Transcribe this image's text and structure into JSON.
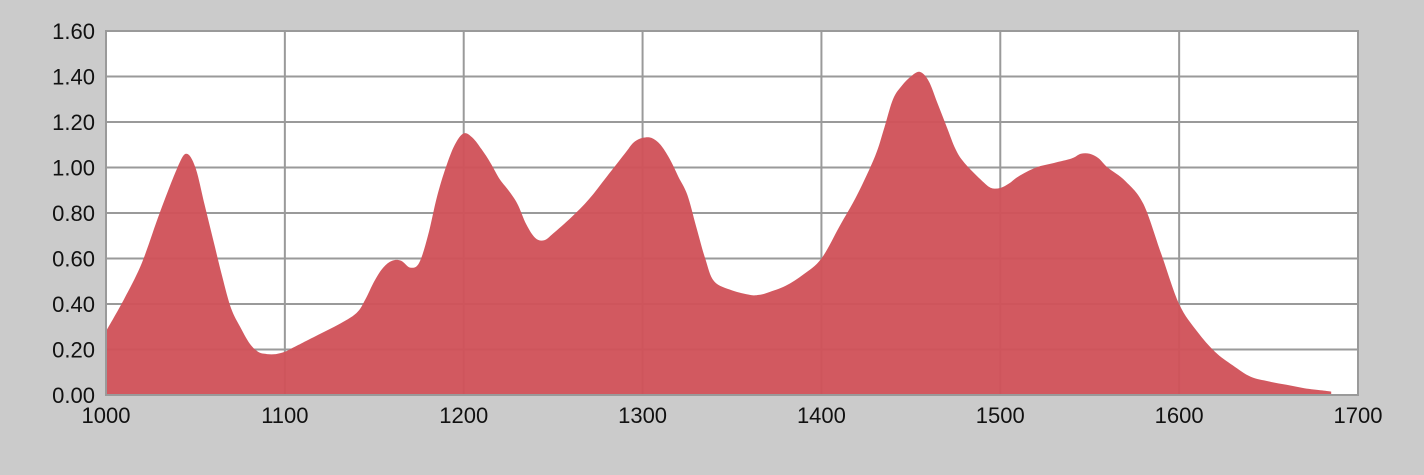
{
  "chart_data": {
    "type": "area",
    "title": "",
    "xlabel": "",
    "ylabel": "",
    "xlim": [
      1000,
      1700
    ],
    "ylim": [
      0,
      1.6
    ],
    "x_ticks": [
      "1000",
      "1100",
      "1200",
      "1300",
      "1400",
      "1500",
      "1600",
      "1700"
    ],
    "y_ticks": [
      "0.00",
      "0.20",
      "0.40",
      "0.60",
      "0.80",
      "1.00",
      "1.20",
      "1.40",
      "1.60"
    ],
    "grid": true,
    "colors": {
      "area": "#d0525a",
      "grid": "#9a9a9a",
      "plot_background": "#ffffff",
      "page_background": "#cbcbcb"
    },
    "series": [
      {
        "x": [
          1000,
          1010,
          1020,
          1030,
          1040,
          1045,
          1050,
          1055,
          1060,
          1065,
          1070,
          1075,
          1080,
          1085,
          1090,
          1095,
          1100,
          1105,
          1110,
          1120,
          1130,
          1140,
          1145,
          1150,
          1155,
          1160,
          1165,
          1170,
          1175,
          1180,
          1185,
          1190,
          1195,
          1200,
          1205,
          1210,
          1215,
          1220,
          1225,
          1230,
          1235,
          1240,
          1245,
          1250,
          1260,
          1270,
          1280,
          1290,
          1295,
          1300,
          1305,
          1310,
          1315,
          1320,
          1325,
          1330,
          1335,
          1340,
          1350,
          1360,
          1365,
          1370,
          1380,
          1390,
          1400,
          1410,
          1420,
          1430,
          1435,
          1440,
          1445,
          1450,
          1455,
          1460,
          1465,
          1470,
          1475,
          1480,
          1490,
          1495,
          1500,
          1505,
          1510,
          1520,
          1530,
          1540,
          1545,
          1550,
          1555,
          1560,
          1570,
          1580,
          1590,
          1600,
          1610,
          1620,
          1630,
          1640,
          1650,
          1660,
          1670,
          1680,
          1685
        ],
        "values": [
          0.28,
          0.42,
          0.58,
          0.8,
          1.0,
          1.06,
          1.0,
          0.84,
          0.68,
          0.52,
          0.38,
          0.3,
          0.23,
          0.19,
          0.18,
          0.18,
          0.19,
          0.21,
          0.23,
          0.27,
          0.31,
          0.36,
          0.42,
          0.5,
          0.56,
          0.59,
          0.59,
          0.56,
          0.58,
          0.7,
          0.87,
          1.0,
          1.1,
          1.15,
          1.13,
          1.08,
          1.02,
          0.95,
          0.9,
          0.84,
          0.75,
          0.69,
          0.68,
          0.71,
          0.78,
          0.86,
          0.96,
          1.06,
          1.11,
          1.13,
          1.13,
          1.1,
          1.04,
          0.96,
          0.88,
          0.74,
          0.6,
          0.5,
          0.46,
          0.44,
          0.44,
          0.45,
          0.48,
          0.53,
          0.6,
          0.74,
          0.88,
          1.05,
          1.17,
          1.3,
          1.36,
          1.4,
          1.42,
          1.38,
          1.28,
          1.18,
          1.08,
          1.02,
          0.94,
          0.91,
          0.91,
          0.93,
          0.96,
          1.0,
          1.02,
          1.04,
          1.06,
          1.06,
          1.04,
          1.0,
          0.94,
          0.84,
          0.62,
          0.4,
          0.28,
          0.19,
          0.13,
          0.08,
          0.06,
          0.045,
          0.03,
          0.02,
          0.015
        ]
      }
    ]
  }
}
